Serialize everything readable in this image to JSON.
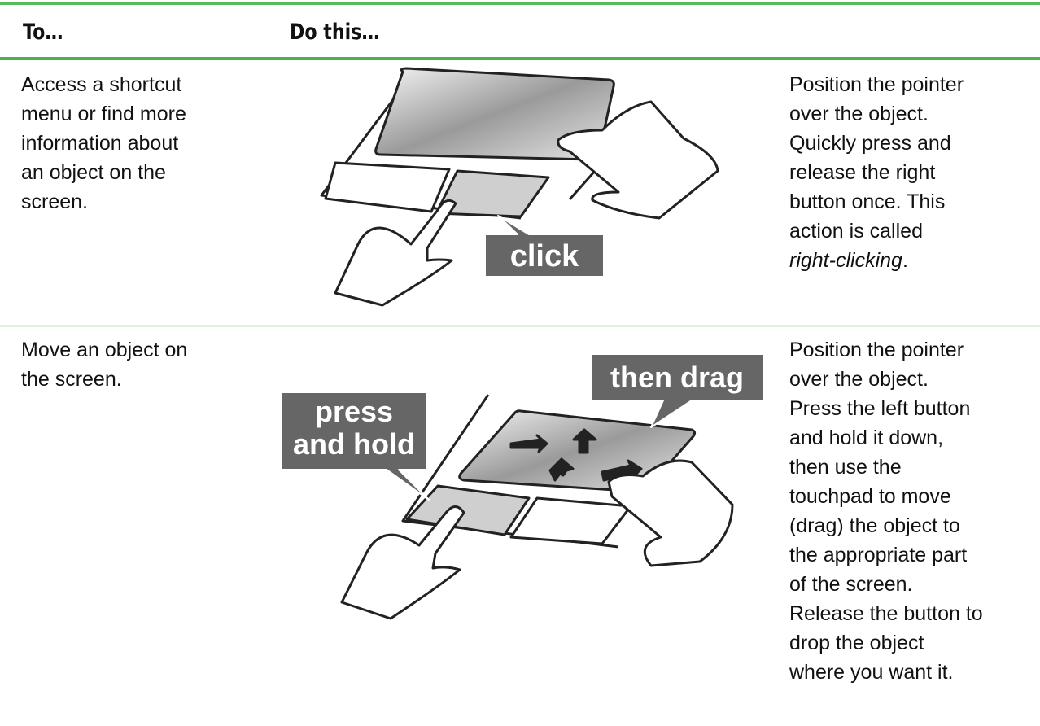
{
  "header": {
    "columns": [
      "To…",
      "Do this…"
    ]
  },
  "table": {
    "rows": [
      {
        "action_lines": [
          "Access a shortcut",
          "menu or find more",
          "information about",
          "an object on the",
          "screen."
        ],
        "labels": [
          "click"
        ],
        "description_lines": [
          "Position the pointer",
          "over the object.",
          "Quickly press and",
          "release the right",
          "button once. This",
          "action is called"
        ],
        "emphasis": "right-clicking",
        "suffix": "."
      },
      {
        "action_lines": [
          "Move an object on",
          "the screen."
        ],
        "labels": [
          "press",
          "and hold",
          "then drag"
        ],
        "description_lines": [
          "Position the pointer",
          "over the object.",
          "Press the left button",
          "and hold it down,",
          "then use the",
          "touchpad to move",
          "(drag) the object to",
          "the appropriate part",
          "of the screen.",
          "Release the button to",
          "drop the object",
          "where you want it."
        ]
      }
    ]
  }
}
